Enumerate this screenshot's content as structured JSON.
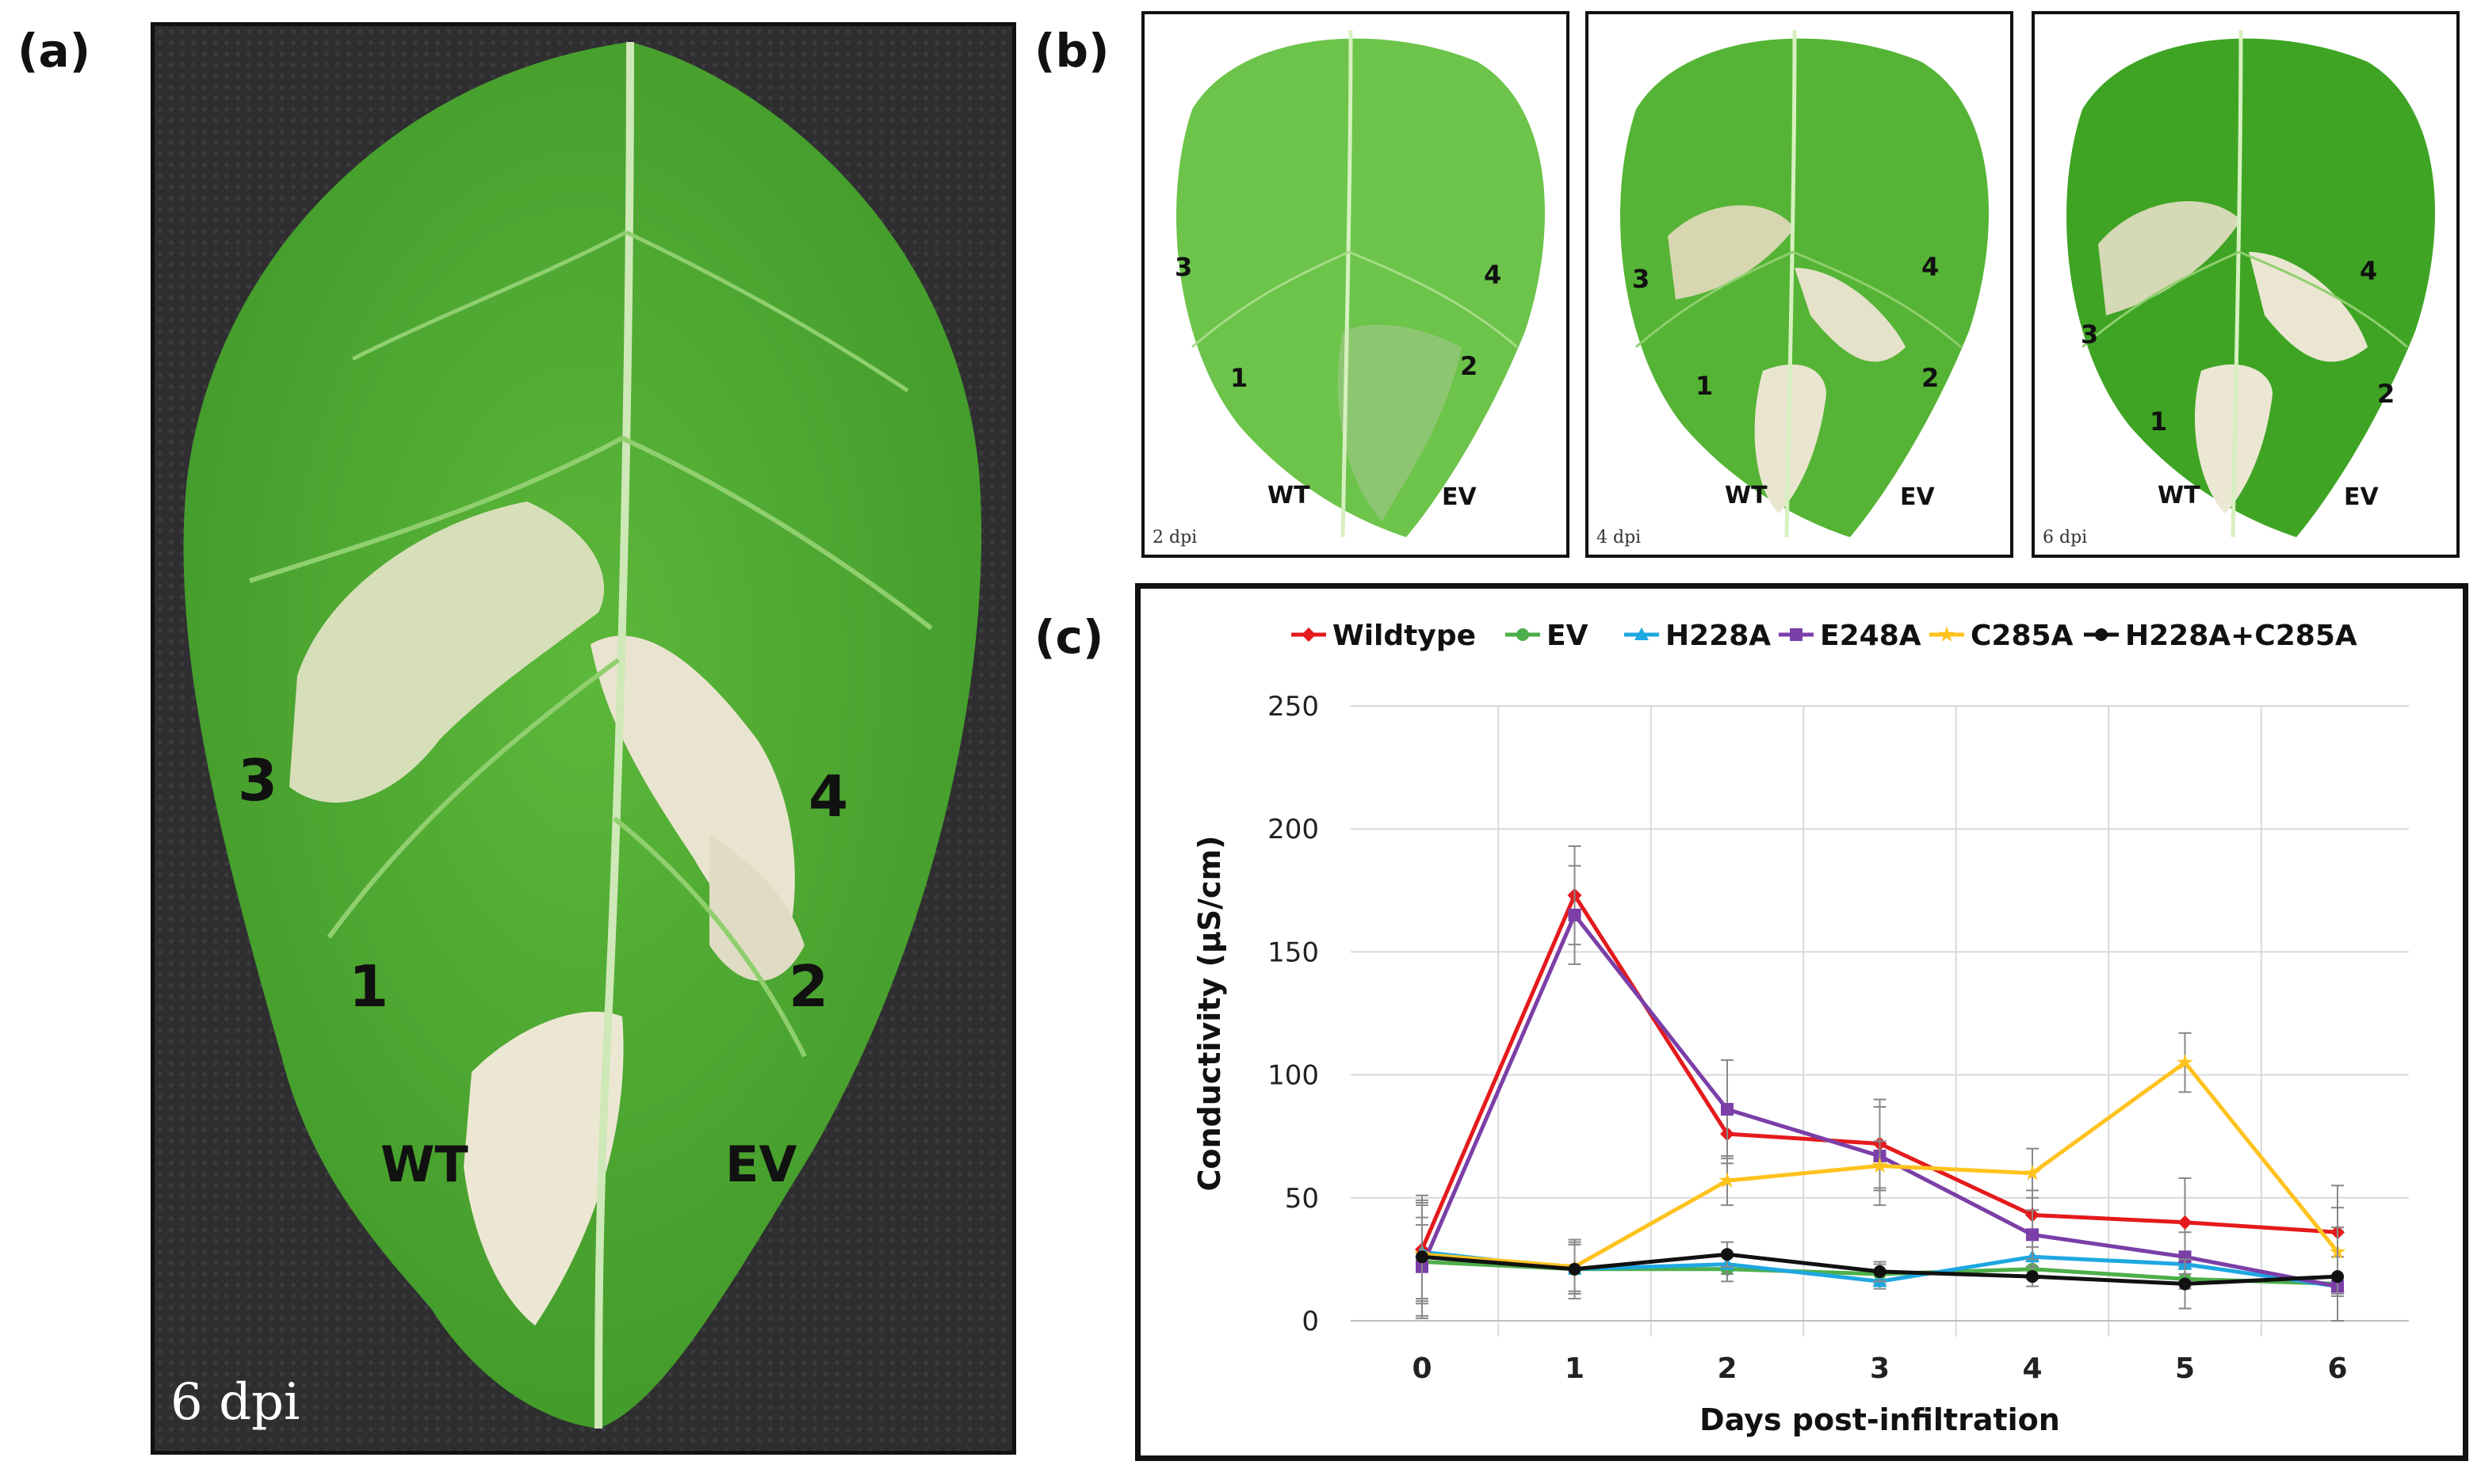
{
  "panels": {
    "a": {
      "letter": "(a)",
      "leaf_labels": [
        "3",
        "4",
        "1",
        "2",
        "WT",
        "EV"
      ],
      "timepoint": "6 dpi"
    },
    "b": {
      "letter": "(b)",
      "leaves": [
        {
          "timepoint": "2 dpi",
          "labels": [
            "3",
            "4",
            "1",
            "2",
            "WT",
            "EV"
          ]
        },
        {
          "timepoint": "4 dpi",
          "labels": [
            "3",
            "4",
            "1",
            "2",
            "WT",
            "EV"
          ]
        },
        {
          "timepoint": "6 dpi",
          "labels": [
            "3",
            "4",
            "1",
            "2",
            "WT",
            "EV"
          ]
        }
      ]
    },
    "c": {
      "letter": "(c)"
    }
  },
  "colors": {
    "leaf": "#4aa030",
    "leaf_light": "#6cc44a",
    "necrosis": "#e9e4cf",
    "background_mesh": "#2e2e30",
    "frame": "#111111"
  },
  "chart_data": {
    "type": "line",
    "title": "",
    "xlabel": "Days post-infiltration",
    "ylabel": "Conductivity (µS/cm)",
    "x": [
      0,
      1,
      2,
      3,
      4,
      5,
      6
    ],
    "xlim": [
      0,
      6
    ],
    "ylim": [
      0,
      250
    ],
    "yticks": [
      0,
      50,
      100,
      150,
      200,
      250
    ],
    "grid": true,
    "legend": "top",
    "series": [
      {
        "name": "Wildtype",
        "color": "#e41a1c",
        "marker": "diamond",
        "values": [
          29,
          173,
          76,
          72,
          43,
          40,
          36
        ],
        "errors": [
          20,
          20,
          12,
          18,
          10,
          18,
          10
        ]
      },
      {
        "name": "EV",
        "color": "#4daf4a",
        "marker": "circle",
        "values": [
          24,
          21,
          21,
          19,
          21,
          17,
          15
        ],
        "errors": [
          15,
          10,
          5,
          4,
          4,
          4,
          3
        ]
      },
      {
        "name": "H228A",
        "color": "#1ea7e1",
        "marker": "triangle",
        "values": [
          28,
          21,
          23,
          16,
          26,
          23,
          14
        ],
        "errors": [
          20,
          10,
          4,
          3,
          4,
          4,
          3
        ]
      },
      {
        "name": "E248A",
        "color": "#7b3fa8",
        "marker": "square",
        "values": [
          22,
          165,
          86,
          67,
          35,
          26,
          14
        ],
        "errors": [
          20,
          20,
          20,
          20,
          10,
          10,
          4
        ]
      },
      {
        "name": "C285A",
        "color": "#ffc21e",
        "marker": "star",
        "values": [
          27,
          22,
          57,
          63,
          60,
          105,
          28
        ],
        "errors": [
          20,
          10,
          10,
          10,
          10,
          12,
          10
        ]
      },
      {
        "name": "H228A+C285A",
        "color": "#111111",
        "marker": "circle",
        "values": [
          26,
          21,
          27,
          20,
          18,
          15,
          18
        ],
        "errors": [
          25,
          12,
          5,
          4,
          4,
          10,
          37
        ]
      }
    ]
  }
}
